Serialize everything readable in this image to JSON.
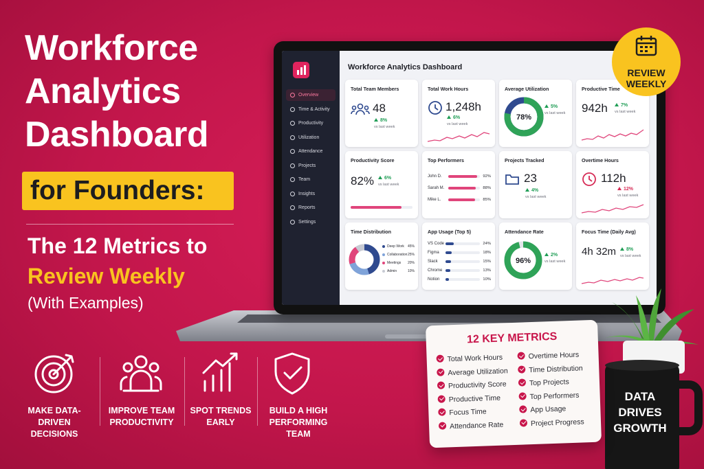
{
  "header": {
    "title_lines": [
      "Workforce",
      "Analytics",
      "Dashboard"
    ],
    "highlight": "for Founders:",
    "subtitle_lines": [
      "The 12 Metrics to",
      "Review Weekly",
      "(With Examples)"
    ]
  },
  "benefits": [
    [
      "MAKE DATA-DRIVEN",
      "DECISIONS"
    ],
    [
      "IMPROVE TEAM",
      "PRODUCTIVITY"
    ],
    [
      "SPOT TRENDS",
      "EARLY"
    ],
    [
      "BUILD A HIGH",
      "PERFORMING TEAM"
    ]
  ],
  "badge": [
    "REVIEW",
    "WEEKLY"
  ],
  "dashboard": {
    "title": "Workforce Analytics Dashboard",
    "nav": [
      "Overview",
      "Time & Activity",
      "Productivity",
      "Utilization",
      "Attendance",
      "Projects",
      "Team",
      "Insights",
      "Reports",
      "Settings"
    ],
    "total_team_members": {
      "label": "Total Team Members",
      "value": "48",
      "change": "8%",
      "note": "vs last week"
    },
    "total_work_hours": {
      "label": "Total Work Hours",
      "value": "1,248h",
      "change": "6%",
      "note": "vs last week"
    },
    "average_utilization": {
      "label": "Average Utilization",
      "value": {
        "value": 78,
        "label": "78%"
      },
      "change": "5%",
      "note": "vs last week"
    },
    "productive_time": {
      "label": "Productive Time",
      "value": "942h",
      "change": "7%",
      "note": "vs last week"
    },
    "productivity_score": {
      "label": "Productivity Score",
      "value": {
        "value": 82,
        "label": "82%"
      },
      "change": "6%",
      "note": "vs last week"
    },
    "top_performers": {
      "label": "Top Performers",
      "rows": [
        {
          "name": "John D.",
          "score": {
            "value": 92,
            "label": "92%"
          }
        },
        {
          "name": "Sarah M.",
          "score": {
            "value": 88,
            "label": "88%"
          }
        },
        {
          "name": "Mike L.",
          "score": {
            "value": 85,
            "label": "85%"
          }
        }
      ]
    },
    "projects_tracked": {
      "label": "Projects Tracked",
      "value": "23",
      "change": "4%",
      "note": "vs last week"
    },
    "overtime_hours": {
      "label": "Overtime Hours",
      "value": "112h",
      "change": "12%",
      "note": "vs last week"
    },
    "time_distribution": {
      "label": "Time Distribution",
      "segments": [
        {
          "name": "Deep Work",
          "share": {
            "value": 45,
            "label": "45%"
          },
          "color": "#2f4a8f"
        },
        {
          "name": "Collaboration",
          "share": {
            "value": 25,
            "label": "25%"
          },
          "color": "#7fa3d9"
        },
        {
          "name": "Meetings",
          "share": {
            "value": 20,
            "label": "20%"
          },
          "color": "#e0457b"
        },
        {
          "name": "Admin",
          "share": {
            "value": 10,
            "label": "10%"
          },
          "color": "#c7cad3"
        }
      ]
    },
    "app_usage": {
      "label": "App Usage (Top 5)",
      "rows": [
        {
          "name": "VS Code",
          "share": {
            "value": 24,
            "label": "24%"
          }
        },
        {
          "name": "Figma",
          "share": {
            "value": 18,
            "label": "18%"
          }
        },
        {
          "name": "Slack",
          "share": {
            "value": 15,
            "label": "15%"
          }
        },
        {
          "name": "Chrome",
          "share": {
            "value": 13,
            "label": "13%"
          }
        },
        {
          "name": "Notion",
          "share": {
            "value": 10,
            "label": "10%"
          }
        }
      ]
    },
    "attendance_rate": {
      "label": "Attendance Rate",
      "value": {
        "value": 96,
        "label": "96%"
      },
      "change": "2%",
      "note": "vs last week"
    },
    "focus_time": {
      "label": "Focus Time (Daily Avg)",
      "value": "4h 32m",
      "change": "8%",
      "note": "vs last week"
    }
  },
  "key_metrics": {
    "title": "12 KEY METRICS",
    "items": [
      "Total Work Hours",
      "Average Utilization",
      "Productivity Score",
      "Productive Time",
      "Focus Time",
      "Attendance Rate",
      "Overtime Hours",
      "Time Distribution",
      "Top Projects",
      "Top Performers",
      "App Usage",
      "Project Progress"
    ]
  },
  "mug": [
    "DATA",
    "DRIVES",
    "GROWTH"
  ]
}
